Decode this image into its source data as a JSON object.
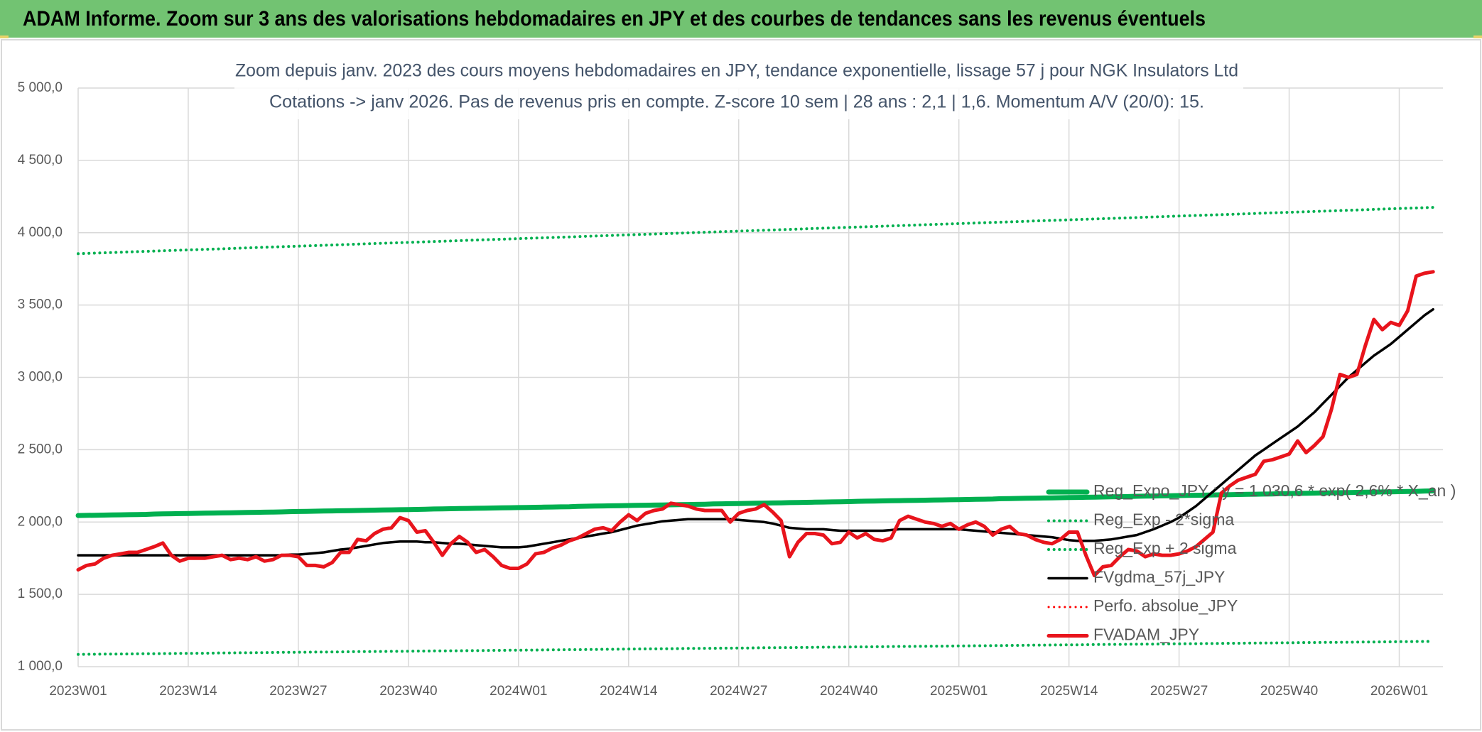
{
  "header": {
    "title": "ADAM Informe. Zoom sur 3 ans des valorisations hebdomadaires en JPY et des courbes de tendances sans les revenus éventuels"
  },
  "chart_data": {
    "type": "line",
    "title": "Zoom depuis janv. 2023 des cours moyens hebdomadaires en JPY, tendance exponentielle, lissage 57 j pour NGK Insulators Ltd",
    "subtitle": "Cotations -> janv 2026. Pas de revenus pris en compte. Z-score 10 sem | 28 ans : 2,1 | 1,6. Momentum A/V (20/0): 15.",
    "ylim": [
      1000,
      5000
    ],
    "yticks": [
      {
        "value": 1000,
        "label": "1 000,0"
      },
      {
        "value": 1500,
        "label": "1 500,0"
      },
      {
        "value": 2000,
        "label": "2 000,0"
      },
      {
        "value": 2500,
        "label": "2 500,0"
      },
      {
        "value": 3000,
        "label": "3 000,0"
      },
      {
        "value": 3500,
        "label": "3 500,0"
      },
      {
        "value": 4000,
        "label": "4 000,0"
      },
      {
        "value": 4500,
        "label": "4 500,0"
      },
      {
        "value": 5000,
        "label": "5 000,0"
      }
    ],
    "grid": true,
    "categories": [
      "2023W01",
      null,
      null,
      null,
      null,
      null,
      null,
      null,
      null,
      null,
      null,
      null,
      null,
      "2023W14",
      null,
      null,
      null,
      null,
      null,
      null,
      null,
      null,
      null,
      null,
      null,
      null,
      "2023W27",
      null,
      null,
      null,
      null,
      null,
      null,
      null,
      null,
      null,
      null,
      null,
      null,
      "2023W40",
      null,
      null,
      null,
      null,
      null,
      null,
      null,
      null,
      null,
      null,
      null,
      null,
      "2024W01",
      null,
      null,
      null,
      null,
      null,
      null,
      null,
      null,
      null,
      null,
      null,
      null,
      "2024W14",
      null,
      null,
      null,
      null,
      null,
      null,
      null,
      null,
      null,
      null,
      null,
      null,
      "2024W27",
      null,
      null,
      null,
      null,
      null,
      null,
      null,
      null,
      null,
      null,
      null,
      null,
      "2024W40",
      null,
      null,
      null,
      null,
      null,
      null,
      null,
      null,
      null,
      null,
      null,
      null,
      "2025W01",
      null,
      null,
      null,
      null,
      null,
      null,
      null,
      null,
      null,
      null,
      null,
      null,
      "2025W14",
      null,
      null,
      null,
      null,
      null,
      null,
      null,
      null,
      null,
      null,
      null,
      null,
      "2025W27",
      null,
      null,
      null,
      null,
      null,
      null,
      null,
      null,
      null,
      null,
      null,
      null,
      "2025W40",
      null,
      null,
      null,
      null,
      null,
      null,
      null,
      null,
      null,
      null,
      null,
      null,
      "2026W01",
      null,
      null,
      null,
      null
    ],
    "series": [
      {
        "name": "Reg_Expo_JPY : y = 1 030,6 * exp( 2,6% * X_an )",
        "color": "#00b050",
        "linestyle": "solid",
        "values": [
          2045,
          2046,
          2047,
          2048,
          2049,
          2050,
          2051,
          2052,
          2053,
          2055,
          2056,
          2057,
          2058,
          2059,
          2060,
          2061,
          2062,
          2063,
          2064,
          2065,
          2066,
          2067,
          2068,
          2069,
          2070,
          2072,
          2073,
          2074,
          2075,
          2076,
          2077,
          2078,
          2079,
          2080,
          2081,
          2082,
          2083,
          2084,
          2085,
          2086,
          2087,
          2088,
          2090,
          2091,
          2092,
          2093,
          2094,
          2095,
          2096,
          2097,
          2098,
          2099,
          2100,
          2101,
          2102,
          2103,
          2104,
          2105,
          2106,
          2108,
          2109,
          2110,
          2111,
          2112,
          2113,
          2114,
          2115,
          2116,
          2117,
          2118,
          2119,
          2120,
          2121,
          2122,
          2123,
          2125,
          2126,
          2127,
          2128,
          2129,
          2130,
          2131,
          2132,
          2133,
          2134,
          2135,
          2136,
          2137,
          2138,
          2139,
          2140,
          2141,
          2143,
          2144,
          2145,
          2146,
          2147,
          2148,
          2149,
          2150,
          2151,
          2152,
          2153,
          2154,
          2155,
          2156,
          2157,
          2158,
          2159,
          2161,
          2162,
          2163,
          2164,
          2165,
          2166,
          2167,
          2168,
          2169,
          2170,
          2171,
          2172,
          2173,
          2174,
          2175,
          2176,
          2178,
          2179,
          2180,
          2181,
          2182,
          2183,
          2184,
          2185,
          2186,
          2187,
          2188,
          2189,
          2190,
          2191,
          2192,
          2193,
          2194,
          2196,
          2197,
          2198,
          2199,
          2200,
          2201,
          2202,
          2203,
          2204,
          2205,
          2206,
          2207,
          2208,
          2209,
          2210,
          2211,
          2212,
          2214,
          2215
        ]
      },
      {
        "name": "Reg_Exp - 2*sigma",
        "color": "#00b050",
        "linestyle": "dotted",
        "values": [
          1085,
          1086,
          1086,
          1087,
          1087,
          1088,
          1088,
          1089,
          1090,
          1090,
          1091,
          1091,
          1092,
          1092,
          1093,
          1093,
          1094,
          1095,
          1095,
          1096,
          1096,
          1097,
          1097,
          1098,
          1099,
          1099,
          1100,
          1100,
          1101,
          1101,
          1102,
          1102,
          1103,
          1104,
          1104,
          1105,
          1105,
          1106,
          1106,
          1107,
          1108,
          1108,
          1109,
          1109,
          1110,
          1110,
          1111,
          1111,
          1112,
          1113,
          1113,
          1114,
          1114,
          1115,
          1115,
          1116,
          1117,
          1117,
          1118,
          1118,
          1119,
          1119,
          1120,
          1120,
          1121,
          1122,
          1122,
          1123,
          1123,
          1124,
          1124,
          1125,
          1126,
          1126,
          1127,
          1127,
          1128,
          1128,
          1129,
          1129,
          1130,
          1131,
          1131,
          1132,
          1132,
          1133,
          1133,
          1134,
          1135,
          1135,
          1136,
          1136,
          1137,
          1137,
          1138,
          1138,
          1139,
          1140,
          1140,
          1141,
          1141,
          1142,
          1142,
          1143,
          1144,
          1144,
          1145,
          1145,
          1146,
          1146,
          1147,
          1147,
          1148,
          1149,
          1149,
          1150,
          1150,
          1151,
          1151,
          1152,
          1153,
          1153,
          1154,
          1154,
          1155,
          1155,
          1156,
          1156,
          1157,
          1158,
          1158,
          1159,
          1159,
          1160,
          1160,
          1161,
          1162,
          1162,
          1163,
          1163,
          1164,
          1164,
          1165,
          1165,
          1166,
          1167,
          1167,
          1168,
          1168,
          1169,
          1169,
          1170,
          1171,
          1171,
          1172,
          1172,
          1173,
          1173,
          1174,
          1174,
          1175
        ]
      },
      {
        "name": "Reg_Exp + 2 sigma",
        "color": "#00b050",
        "linestyle": "dotted",
        "values": [
          3855,
          3857,
          3859,
          3861,
          3863,
          3865,
          3867,
          3869,
          3871,
          3873,
          3875,
          3877,
          3879,
          3881,
          3883,
          3885,
          3887,
          3889,
          3891,
          3893,
          3895,
          3897,
          3899,
          3901,
          3903,
          3905,
          3907,
          3909,
          3911,
          3913,
          3915,
          3917,
          3919,
          3921,
          3923,
          3925,
          3927,
          3929,
          3931,
          3933,
          3935,
          3937,
          3939,
          3941,
          3943,
          3945,
          3947,
          3949,
          3951,
          3953,
          3955,
          3957,
          3959,
          3961,
          3963,
          3965,
          3967,
          3969,
          3971,
          3973,
          3975,
          3977,
          3979,
          3981,
          3983,
          3985,
          3987,
          3989,
          3991,
          3993,
          3995,
          3997,
          3999,
          4001,
          4003,
          4005,
          4007,
          4009,
          4011,
          4013,
          4015,
          4017,
          4019,
          4021,
          4023,
          4025,
          4027,
          4029,
          4031,
          4033,
          4035,
          4037,
          4039,
          4041,
          4043,
          4045,
          4047,
          4049,
          4051,
          4053,
          4055,
          4057,
          4059,
          4061,
          4063,
          4065,
          4067,
          4069,
          4071,
          4073,
          4075,
          4077,
          4079,
          4081,
          4083,
          4085,
          4087,
          4089,
          4091,
          4093,
          4095,
          4097,
          4099,
          4101,
          4103,
          4105,
          4107,
          4109,
          4111,
          4113,
          4115,
          4117,
          4119,
          4121,
          4123,
          4125,
          4127,
          4129,
          4131,
          4133,
          4135,
          4137,
          4139,
          4141,
          4143,
          4145,
          4147,
          4149,
          4151,
          4153,
          4155,
          4157,
          4159,
          4161,
          4163,
          4165,
          4167,
          4169,
          4171,
          4173,
          4175
        ]
      },
      {
        "name": "FVgdma_57j_JPY",
        "color": "#000000",
        "linestyle": "solid",
        "values": [
          1770,
          1770,
          1770,
          1770,
          1770,
          1770,
          1770,
          1770,
          1770,
          1770,
          1770,
          1770,
          1770,
          1770,
          1770,
          1770,
          1770,
          1770,
          1770,
          1770,
          1770,
          1770,
          1770,
          1770,
          1770,
          1775,
          1775,
          1780,
          1785,
          1790,
          1800,
          1810,
          1815,
          1825,
          1835,
          1845,
          1855,
          1860,
          1865,
          1865,
          1865,
          1860,
          1860,
          1855,
          1850,
          1850,
          1845,
          1840,
          1835,
          1830,
          1825,
          1825,
          1825,
          1830,
          1840,
          1850,
          1860,
          1870,
          1880,
          1890,
          1900,
          1910,
          1920,
          1930,
          1945,
          1960,
          1975,
          1985,
          1995,
          2005,
          2010,
          2015,
          2020,
          2020,
          2020,
          2020,
          2020,
          2020,
          2015,
          2010,
          2005,
          2000,
          1990,
          1975,
          1960,
          1955,
          1950,
          1950,
          1950,
          1945,
          1940,
          1940,
          1940,
          1940,
          1940,
          1940,
          1945,
          1950,
          1950,
          1950,
          1950,
          1950,
          1950,
          1950,
          1950,
          1945,
          1940,
          1935,
          1930,
          1925,
          1920,
          1915,
          1910,
          1905,
          1900,
          1895,
          1885,
          1875,
          1870,
          1870,
          1870,
          1875,
          1880,
          1890,
          1900,
          1910,
          1930,
          1950,
          1975,
          2000,
          2030,
          2070,
          2110,
          2160,
          2210,
          2260,
          2310,
          2360,
          2410,
          2460,
          2500,
          2540,
          2580,
          2620,
          2660,
          2710,
          2760,
          2820,
          2880,
          2940,
          3000,
          3050,
          3100,
          3150,
          3190,
          3230,
          3280,
          3330,
          3380,
          3430,
          3470
        ]
      },
      {
        "name": "Perfo. absolue_JPY",
        "color": "#ff0000",
        "linestyle": "dotted",
        "values": [
          null,
          null,
          null,
          null,
          null,
          null,
          null,
          null,
          null,
          null,
          null,
          null,
          null,
          null,
          null,
          null,
          null,
          null,
          null,
          null,
          null,
          null,
          null,
          null,
          null,
          null,
          null,
          null,
          null,
          null,
          null,
          null,
          null,
          null,
          null,
          null,
          null,
          null,
          null,
          null,
          null,
          null,
          null,
          null,
          null,
          null,
          null,
          null,
          null,
          null,
          null,
          null,
          null,
          null,
          null,
          null,
          null,
          null,
          null,
          null,
          null,
          null,
          null,
          null,
          null,
          null,
          null,
          null,
          null,
          null,
          null,
          null,
          null,
          null,
          null,
          null,
          null,
          null,
          null,
          null,
          null,
          null,
          null,
          null,
          null,
          null,
          null,
          null,
          null,
          null,
          null,
          null,
          null,
          null,
          null,
          null,
          null,
          null,
          null,
          null,
          null,
          null,
          null,
          null,
          null,
          null,
          null,
          null,
          null,
          null,
          null,
          null,
          null,
          null,
          null,
          null,
          null,
          null,
          null,
          null,
          null,
          null,
          null,
          null,
          null,
          null,
          null,
          null,
          null,
          null,
          null,
          null,
          null,
          null,
          null,
          null,
          null,
          null,
          null,
          null,
          null,
          null,
          null,
          null,
          null,
          null,
          null,
          null,
          null,
          null,
          null,
          null,
          null,
          null,
          null,
          null,
          null,
          null,
          null,
          null,
          null
        ]
      },
      {
        "name": "FVADAM_JPY",
        "color": "#e8141c",
        "linestyle": "solid",
        "values": [
          1670,
          1700,
          1710,
          1750,
          1770,
          1780,
          1790,
          1790,
          1810,
          1830,
          1855,
          1770,
          1730,
          1750,
          1750,
          1750,
          1760,
          1770,
          1740,
          1750,
          1740,
          1760,
          1730,
          1740,
          1770,
          1770,
          1760,
          1700,
          1700,
          1690,
          1720,
          1790,
          1790,
          1880,
          1870,
          1920,
          1950,
          1960,
          2030,
          2010,
          1930,
          1940,
          1860,
          1770,
          1850,
          1900,
          1860,
          1790,
          1810,
          1760,
          1700,
          1680,
          1680,
          1710,
          1780,
          1790,
          1820,
          1840,
          1870,
          1890,
          1920,
          1950,
          1960,
          1940,
          2000,
          2050,
          2010,
          2060,
          2080,
          2090,
          2130,
          2120,
          2110,
          2090,
          2080,
          2080,
          2080,
          2000,
          2060,
          2080,
          2090,
          2120,
          2070,
          2010,
          1760,
          1860,
          1920,
          1920,
          1910,
          1850,
          1860,
          1930,
          1890,
          1920,
          1880,
          1870,
          1890,
          2010,
          2040,
          2020,
          2000,
          1990,
          1970,
          1990,
          1950,
          1980,
          2000,
          1970,
          1910,
          1950,
          1970,
          1920,
          1910,
          1880,
          1860,
          1850,
          1880,
          1930,
          1930,
          1770,
          1630,
          1690,
          1700,
          1760,
          1810,
          1800,
          1760,
          1780,
          1770,
          1770,
          1780,
          1800,
          1830,
          1880,
          1930,
          2200,
          2250,
          2290,
          2310,
          2330,
          2420,
          2430,
          2450,
          2470,
          2560,
          2480,
          2530,
          2590,
          2780,
          3020,
          3000,
          3020,
          3220,
          3400,
          3330,
          3380,
          3360,
          3460,
          3700,
          3720,
          3730
        ]
      }
    ]
  }
}
